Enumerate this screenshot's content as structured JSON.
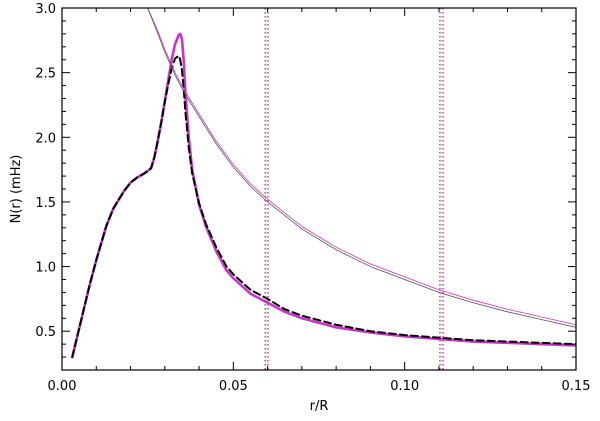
{
  "chart_data": {
    "type": "line",
    "xlabel": "r/R",
    "ylabel": "N(r) (mHz)",
    "xlim": [
      0.0,
      0.15
    ],
    "ylim": [
      0.2,
      3.0
    ],
    "xticks": [
      0.0,
      0.05,
      0.1,
      0.15
    ],
    "xtick_labels": [
      "0.00",
      "0.05",
      "0.10",
      "0.15"
    ],
    "yticks": [
      0.5,
      1.0,
      1.5,
      2.0,
      2.5,
      3.0
    ],
    "ytick_labels": [
      "0.5",
      "1.0",
      "1.5",
      "2.0",
      "2.5",
      "3.0"
    ],
    "grid": false,
    "legend": "none",
    "series": [
      {
        "color": "#cc33cc",
        "style": "solid-thick",
        "x": [
          0.003,
          0.005,
          0.008,
          0.01,
          0.013,
          0.015,
          0.018,
          0.02,
          0.022,
          0.024,
          0.026,
          0.027,
          0.028,
          0.029,
          0.03,
          0.031,
          0.032,
          0.033,
          0.034,
          0.0345,
          0.035,
          0.0355,
          0.036,
          0.037,
          0.038,
          0.04,
          0.042,
          0.045,
          0.048,
          0.05,
          0.055,
          0.06,
          0.065,
          0.07,
          0.08,
          0.09,
          0.1,
          0.11,
          0.12,
          0.13,
          0.14,
          0.15
        ],
        "y": [
          0.3,
          0.52,
          0.85,
          1.05,
          1.32,
          1.45,
          1.58,
          1.65,
          1.69,
          1.72,
          1.76,
          1.85,
          1.98,
          2.12,
          2.28,
          2.44,
          2.6,
          2.72,
          2.79,
          2.8,
          2.76,
          2.6,
          2.35,
          2.0,
          1.75,
          1.48,
          1.31,
          1.12,
          0.97,
          0.91,
          0.79,
          0.72,
          0.65,
          0.6,
          0.53,
          0.49,
          0.46,
          0.44,
          0.42,
          0.41,
          0.4,
          0.39
        ]
      },
      {
        "color": "#000000",
        "style": "dashed",
        "x": [
          0.003,
          0.005,
          0.008,
          0.01,
          0.013,
          0.015,
          0.018,
          0.02,
          0.022,
          0.024,
          0.026,
          0.027,
          0.028,
          0.029,
          0.03,
          0.031,
          0.032,
          0.033,
          0.034,
          0.0345,
          0.035,
          0.0355,
          0.036,
          0.037,
          0.038,
          0.04,
          0.042,
          0.045,
          0.048,
          0.05,
          0.055,
          0.06,
          0.065,
          0.07,
          0.08,
          0.09,
          0.1,
          0.11,
          0.12,
          0.13,
          0.14,
          0.15
        ],
        "y": [
          0.3,
          0.52,
          0.85,
          1.05,
          1.32,
          1.45,
          1.58,
          1.65,
          1.69,
          1.72,
          1.76,
          1.85,
          1.98,
          2.12,
          2.27,
          2.41,
          2.53,
          2.61,
          2.63,
          2.6,
          2.52,
          2.38,
          2.2,
          1.92,
          1.72,
          1.49,
          1.33,
          1.15,
          1.0,
          0.94,
          0.82,
          0.75,
          0.67,
          0.62,
          0.55,
          0.5,
          0.47,
          0.45,
          0.43,
          0.42,
          0.41,
          0.4
        ]
      },
      {
        "color": "#cc33cc",
        "style": "thin",
        "x": [
          0.025,
          0.028,
          0.03,
          0.033,
          0.036,
          0.04,
          0.045,
          0.05,
          0.055,
          0.06,
          0.07,
          0.08,
          0.09,
          0.1,
          0.11,
          0.12,
          0.13,
          0.14,
          0.15
        ],
        "y": [
          3.0,
          2.82,
          2.68,
          2.5,
          2.35,
          2.18,
          1.97,
          1.79,
          1.64,
          1.52,
          1.31,
          1.15,
          1.02,
          0.92,
          0.82,
          0.74,
          0.67,
          0.61,
          0.55
        ]
      },
      {
        "color": "#555555",
        "style": "thin",
        "x": [
          0.025,
          0.028,
          0.03,
          0.033,
          0.036,
          0.04,
          0.045,
          0.05,
          0.055,
          0.06,
          0.07,
          0.08,
          0.09,
          0.1,
          0.11,
          0.12,
          0.13,
          0.14,
          0.15
        ],
        "y": [
          3.0,
          2.8,
          2.66,
          2.48,
          2.33,
          2.16,
          1.95,
          1.77,
          1.62,
          1.5,
          1.29,
          1.13,
          1.0,
          0.9,
          0.8,
          0.72,
          0.65,
          0.59,
          0.53
        ]
      }
    ],
    "vlines": [
      {
        "x": 0.0593,
        "color": "#ff2222",
        "style": "dotted"
      },
      {
        "x": 0.0601,
        "color": "#9933cc",
        "style": "dotted"
      },
      {
        "x": 0.1103,
        "color": "#ff2222",
        "style": "dotted"
      },
      {
        "x": 0.1112,
        "color": "#9933cc",
        "style": "dotted"
      }
    ]
  }
}
